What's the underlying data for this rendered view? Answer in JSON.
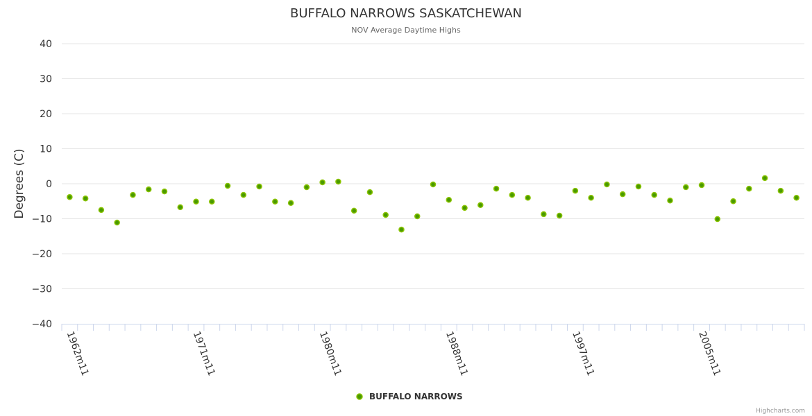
{
  "chart_data": {
    "type": "scatter",
    "title": "BUFFALO NARROWS SASKATCHEWAN",
    "subtitle": "NOV Average Daytime Highs",
    "xlabel": "",
    "ylabel": "Degrees (C)",
    "ylim": [
      -40,
      40
    ],
    "yticks": [
      40,
      30,
      20,
      10,
      0,
      -10,
      -20,
      -30,
      -40
    ],
    "ytick_labels": [
      "40",
      "30",
      "20",
      "10",
      "0",
      "−10",
      "−20",
      "−30",
      "−40"
    ],
    "grid": true,
    "legend_position": "bottom-center",
    "categories": [
      "1962m11",
      "1963m11",
      "1964m11",
      "1965m11",
      "1966m11",
      "1967m11",
      "1968m11",
      "1969m11",
      "1971m11",
      "1972m11",
      "1973m11",
      "1974m11",
      "1975m11",
      "1976m11",
      "1977m11",
      "1978m11",
      "1980m11",
      "1981m11",
      "1982m11",
      "1983m11",
      "1984m11",
      "1985m11",
      "1986m11",
      "1987m11",
      "1988m11",
      "1989m11",
      "1990m11",
      "1991m11",
      "1992m11",
      "1993m11",
      "1994m11",
      "1995m11",
      "1997m11",
      "1998m11",
      "1999m11",
      "2000m11",
      "2001m11",
      "2002m11",
      "2003m11",
      "2004m11",
      "2005m11",
      "2006m11",
      "2007m11",
      "2008m11",
      "2009m11",
      "2010m11",
      "2011m11"
    ],
    "shown_xtick_labels": [
      "1962m11",
      "1971m11",
      "1980m11",
      "1988m11",
      "1997m11",
      "2005m11"
    ],
    "label_every": 8,
    "series": [
      {
        "name": "BUFFALO NARROWS",
        "color": "#4a9a00",
        "border": "#8bc400",
        "values": [
          -3.8,
          -4.2,
          -7.5,
          -11.1,
          -3.2,
          -1.6,
          -2.2,
          -6.7,
          -5.1,
          -5.1,
          -0.6,
          -3.2,
          -0.8,
          -5.1,
          -5.5,
          -1.0,
          0.4,
          0.6,
          -7.7,
          -2.4,
          -8.9,
          -13.1,
          -9.3,
          -0.2,
          -4.6,
          -6.9,
          -6.1,
          -1.4,
          -3.2,
          -4.0,
          -8.7,
          -9.1,
          -2.0,
          -4.0,
          -0.2,
          -3.0,
          -0.8,
          -3.2,
          -4.8,
          -1.0,
          -0.4,
          -10.1,
          -5.0,
          -1.4,
          1.6,
          -2.0,
          -4.0
        ]
      }
    ],
    "credits": "Highcharts.com"
  }
}
